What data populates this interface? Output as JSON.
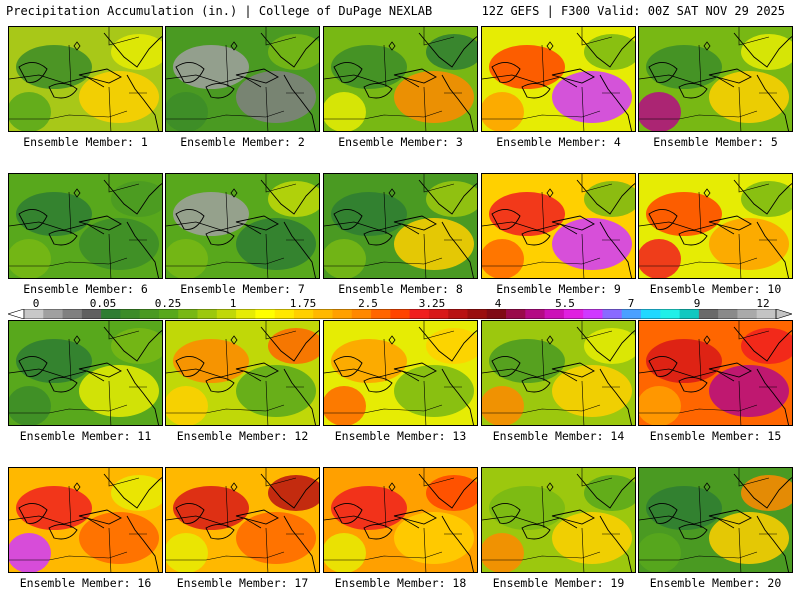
{
  "header": {
    "left_title": "Precipitation Accumulation (in.) | College of DuPage NEXLAB",
    "right_title": "12Z GEFS | F300 Valid: 00Z SAT NOV 29 2025"
  },
  "colorbar": {
    "labels": [
      "0",
      "0.05",
      "0.25",
      "1",
      "1.75",
      "2.5",
      "3.25",
      "4",
      "5.5",
      "7",
      "9",
      "12"
    ],
    "colors": [
      "#c8c8c8",
      "#a0a0a0",
      "#808080",
      "#606060",
      "#2e7d32",
      "#3c8c28",
      "#4a9a22",
      "#58a81c",
      "#78b814",
      "#9cc80e",
      "#c0d808",
      "#e6ec04",
      "#ffff00",
      "#ffe800",
      "#ffd000",
      "#ffb800",
      "#ffa000",
      "#ff8800",
      "#ff6600",
      "#ff4400",
      "#f01e1e",
      "#d81818",
      "#b81212",
      "#9a0e0e",
      "#800a14",
      "#9a0a4a",
      "#b40a84",
      "#cc10b8",
      "#e020e0",
      "#d038ff",
      "#8a6aff",
      "#4aa0ff",
      "#20d8ff",
      "#20f0e8",
      "#10c8c0",
      "#6a6a6a",
      "#8a8a8a",
      "#aaaaaa",
      "#c4c4c4"
    ]
  },
  "members": [
    {
      "label": "Ensemble Member: 1",
      "base": "#a8c818",
      "blobs": [
        {
          "c": "#3c8c28"
        },
        {
          "c": "#ffd000"
        },
        {
          "c": "#58a81c"
        },
        {
          "c": "#e6ec04"
        }
      ]
    },
    {
      "label": "Ensemble Member: 2",
      "base": "#4a9a22",
      "blobs": [
        {
          "c": "#a0a0a0"
        },
        {
          "c": "#808080"
        },
        {
          "c": "#3c8c28"
        },
        {
          "c": "#78b814"
        }
      ]
    },
    {
      "label": "Ensemble Member: 3",
      "base": "#78b814",
      "blobs": [
        {
          "c": "#3c8c28"
        },
        {
          "c": "#ff8800"
        },
        {
          "c": "#e6ec04"
        },
        {
          "c": "#2e7d32"
        }
      ]
    },
    {
      "label": "Ensemble Member: 4",
      "base": "#e6ec04",
      "blobs": [
        {
          "c": "#ff4400"
        },
        {
          "c": "#d038ff"
        },
        {
          "c": "#ffa000"
        },
        {
          "c": "#78b814"
        }
      ]
    },
    {
      "label": "Ensemble Member: 5",
      "base": "#78b814",
      "blobs": [
        {
          "c": "#3c8c28"
        },
        {
          "c": "#ffd000"
        },
        {
          "c": "#b40a84"
        },
        {
          "c": "#e6ec04"
        }
      ]
    },
    {
      "label": "Ensemble Member: 6",
      "base": "#58a81c",
      "blobs": [
        {
          "c": "#2e7d32"
        },
        {
          "c": "#3c8c28"
        },
        {
          "c": "#78b814"
        },
        {
          "c": "#4a9a22"
        }
      ]
    },
    {
      "label": "Ensemble Member: 7",
      "base": "#58a81c",
      "blobs": [
        {
          "c": "#a0a0a0"
        },
        {
          "c": "#2e7d32"
        },
        {
          "c": "#78b814"
        },
        {
          "c": "#c0d808"
        }
      ]
    },
    {
      "label": "Ensemble Member: 8",
      "base": "#4a9a22",
      "blobs": [
        {
          "c": "#2e7d32"
        },
        {
          "c": "#ffd000"
        },
        {
          "c": "#78b814"
        },
        {
          "c": "#9cc80e"
        }
      ]
    },
    {
      "label": "Ensemble Member: 9",
      "base": "#ffd000",
      "blobs": [
        {
          "c": "#f01e1e"
        },
        {
          "c": "#d038ff"
        },
        {
          "c": "#ff6600"
        },
        {
          "c": "#78b814"
        }
      ]
    },
    {
      "label": "Ensemble Member: 10",
      "base": "#e6ec04",
      "blobs": [
        {
          "c": "#ff4400"
        },
        {
          "c": "#ffa000"
        },
        {
          "c": "#f01e1e"
        },
        {
          "c": "#78b814"
        }
      ]
    },
    {
      "label": "Ensemble Member: 11",
      "base": "#58a81c",
      "blobs": [
        {
          "c": "#2e7d32"
        },
        {
          "c": "#e6ec04"
        },
        {
          "c": "#3c8c28"
        },
        {
          "c": "#78b814"
        }
      ]
    },
    {
      "label": "Ensemble Member: 12",
      "base": "#c0d808",
      "blobs": [
        {
          "c": "#ff8800"
        },
        {
          "c": "#58a81c"
        },
        {
          "c": "#ffd000"
        },
        {
          "c": "#ff6600"
        }
      ]
    },
    {
      "label": "Ensemble Member: 13",
      "base": "#e6ec04",
      "blobs": [
        {
          "c": "#ffa000"
        },
        {
          "c": "#78b814"
        },
        {
          "c": "#ff6600"
        },
        {
          "c": "#ffd000"
        }
      ]
    },
    {
      "label": "Ensemble Member: 14",
      "base": "#9cc80e",
      "blobs": [
        {
          "c": "#4a9a22"
        },
        {
          "c": "#ffd000"
        },
        {
          "c": "#ff8800"
        },
        {
          "c": "#e6ec04"
        }
      ]
    },
    {
      "label": "Ensemble Member: 15",
      "base": "#ff6600",
      "blobs": [
        {
          "c": "#d81818"
        },
        {
          "c": "#b40a84"
        },
        {
          "c": "#ffa000"
        },
        {
          "c": "#f01e1e"
        }
      ]
    },
    {
      "label": "Ensemble Member: 16",
      "base": "#ffb800",
      "blobs": [
        {
          "c": "#f01e1e"
        },
        {
          "c": "#ff6600"
        },
        {
          "c": "#d038ff"
        },
        {
          "c": "#e6ec04"
        }
      ]
    },
    {
      "label": "Ensemble Member: 17",
      "base": "#ffb800",
      "blobs": [
        {
          "c": "#d81818"
        },
        {
          "c": "#ff6600"
        },
        {
          "c": "#e6ec04"
        },
        {
          "c": "#b81212"
        }
      ]
    },
    {
      "label": "Ensemble Member: 18",
      "base": "#ffa000",
      "blobs": [
        {
          "c": "#f01e1e"
        },
        {
          "c": "#ffd000"
        },
        {
          "c": "#e6ec04"
        },
        {
          "c": "#ff4400"
        }
      ]
    },
    {
      "label": "Ensemble Member: 19",
      "base": "#9cc80e",
      "blobs": [
        {
          "c": "#78b814"
        },
        {
          "c": "#ffd000"
        },
        {
          "c": "#ff8800"
        },
        {
          "c": "#58a81c"
        }
      ]
    },
    {
      "label": "Ensemble Member: 20",
      "base": "#4a9a22",
      "blobs": [
        {
          "c": "#2e7d32"
        },
        {
          "c": "#ffd000"
        },
        {
          "c": "#58a81c"
        },
        {
          "c": "#ff8800"
        }
      ]
    }
  ]
}
